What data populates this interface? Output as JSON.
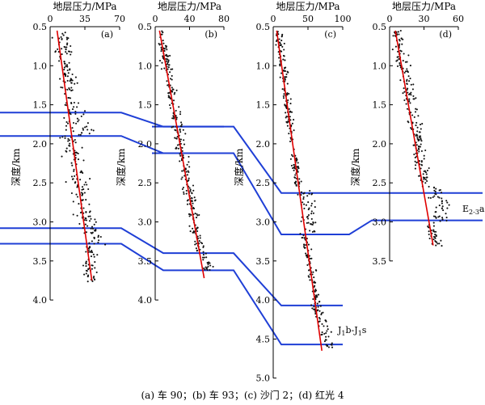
{
  "caption": "(a) 车 90；(b) 车 93；(c) 沙门 2；(d) 红光 4",
  "layer_labels": {
    "e23a": "E",
    "e23a_sub": "2-3",
    "e23a_suf": "a",
    "j1b": "J",
    "j1b_sub1": "1",
    "j1b_mid": "b-J",
    "j1b_sub2": "1",
    "j1b_suf": "s"
  },
  "colors": {
    "trend": "#e00000",
    "boundary": "#1f3fd6",
    "points": "#111111"
  },
  "chart_data": [
    {
      "type": "scatter",
      "panel": "(a)",
      "xlabel": "地层压力/MPa",
      "ylabel": "深度/km",
      "xlim": [
        0,
        70
      ],
      "ylim": [
        0.5,
        4.0
      ],
      "xticks": [
        "0",
        "35",
        "70"
      ],
      "yticks": [
        "0.5",
        "1.0",
        "1.5",
        "2.0",
        "2.5",
        "3.0",
        "3.5",
        "4.0"
      ],
      "trend": [
        [
          7,
          0.55
        ],
        [
          42,
          3.75
        ]
      ],
      "segments": [
        {
          "d0": 0.55,
          "d1": 1.5,
          "p0": 10,
          "p1": 22,
          "spread": 4
        },
        {
          "d0": 1.5,
          "d1": 1.9,
          "p0": 24,
          "p1": 32,
          "spread": 7
        },
        {
          "d0": 1.9,
          "d1": 3.0,
          "p0": 20,
          "p1": 36,
          "spread": 5
        },
        {
          "d0": 3.0,
          "d1": 3.3,
          "p0": 38,
          "p1": 48,
          "spread": 5
        },
        {
          "d0": 3.3,
          "d1": 3.78,
          "p0": 40,
          "p1": 42,
          "spread": 3
        }
      ],
      "n_points": 320
    },
    {
      "type": "scatter",
      "panel": "(b)",
      "xlabel": "地层压力/MPa",
      "ylabel": "深度/km",
      "xlim": [
        0,
        80
      ],
      "ylim": [
        0.5,
        4.0
      ],
      "xticks": [
        "0",
        "40",
        "80"
      ],
      "yticks": [
        "0.5",
        "1.0",
        "1.5",
        "2.0",
        "2.5",
        "3.0",
        "3.5",
        "4.0"
      ],
      "trend": [
        [
          5,
          0.55
        ],
        [
          57,
          3.72
        ]
      ],
      "segments": [
        {
          "d0": 0.55,
          "d1": 3.4,
          "p0": 6,
          "p1": 52,
          "spread": 3
        },
        {
          "d0": 3.4,
          "d1": 3.62,
          "p0": 55,
          "p1": 62,
          "spread": 3
        }
      ],
      "n_points": 300
    },
    {
      "type": "scatter",
      "panel": "(c)",
      "xlabel": "地层压力/MPa",
      "ylabel": "深度/km",
      "xlim": [
        0,
        100
      ],
      "ylim": [
        0.5,
        5.0
      ],
      "xticks": [
        "0",
        "50",
        "100"
      ],
      "yticks": [
        "0.5",
        "1.0",
        "1.5",
        "2.0",
        "2.5",
        "3.0",
        "3.5",
        "4.0",
        "4.5",
        "5.0"
      ],
      "trend": [
        [
          5,
          0.55
        ],
        [
          70,
          4.65
        ]
      ],
      "segments": [
        {
          "d0": 0.55,
          "d1": 2.6,
          "p0": 7,
          "p1": 36,
          "spread": 3
        },
        {
          "d0": 2.6,
          "d1": 3.15,
          "p0": 44,
          "p1": 56,
          "spread": 6
        },
        {
          "d0": 3.15,
          "d1": 4.05,
          "p0": 44,
          "p1": 63,
          "spread": 3
        },
        {
          "d0": 4.05,
          "d1": 4.62,
          "p0": 62,
          "p1": 82,
          "spread": 4
        }
      ],
      "n_points": 360
    },
    {
      "type": "scatter",
      "panel": "(d)",
      "xlabel": "地层压力/MPa",
      "ylabel": "深度/km",
      "xlim": [
        0,
        60
      ],
      "ylim": [
        0.5,
        3.5
      ],
      "xticks": [
        "0",
        "30",
        "60"
      ],
      "yticks": [
        "0.5",
        "1.0",
        "1.5",
        "2.0",
        "2.5",
        "3.0",
        "3.5"
      ],
      "trend": [
        [
          5,
          0.55
        ],
        [
          38,
          3.3
        ]
      ],
      "segments": [
        {
          "d0": 0.55,
          "d1": 2.55,
          "p0": 6,
          "p1": 32,
          "spread": 3
        },
        {
          "d0": 2.55,
          "d1": 3.0,
          "p0": 40,
          "p1": 46,
          "spread": 4
        },
        {
          "d0": 3.0,
          "d1": 3.32,
          "p0": 36,
          "p1": 42,
          "spread": 3
        }
      ],
      "n_points": 280
    }
  ],
  "boundaries": [
    {
      "name": "a-b-upper",
      "y_depth": [
        [
          0,
          1.6
        ],
        [
          1,
          1.78
        ]
      ]
    },
    {
      "name": "a-b-lower",
      "y_depth": [
        [
          0,
          1.9
        ],
        [
          1,
          2.12
        ]
      ]
    },
    {
      "name": "a-b-c-3",
      "y_depth": [
        [
          0,
          3.08
        ],
        [
          1,
          3.4
        ],
        [
          2,
          4.07
        ]
      ]
    },
    {
      "name": "a-b-c-4",
      "y_depth": [
        [
          0,
          3.28
        ],
        [
          1,
          3.62
        ],
        [
          2,
          4.57
        ]
      ]
    },
    {
      "name": "b-c-d-1",
      "y_depth": [
        [
          1,
          1.78
        ],
        [
          2,
          2.63
        ],
        [
          3,
          2.63
        ]
      ]
    },
    {
      "name": "b-c-d-2",
      "y_depth": [
        [
          1,
          2.12
        ],
        [
          2,
          3.16
        ],
        [
          3,
          2.98
        ]
      ]
    }
  ]
}
